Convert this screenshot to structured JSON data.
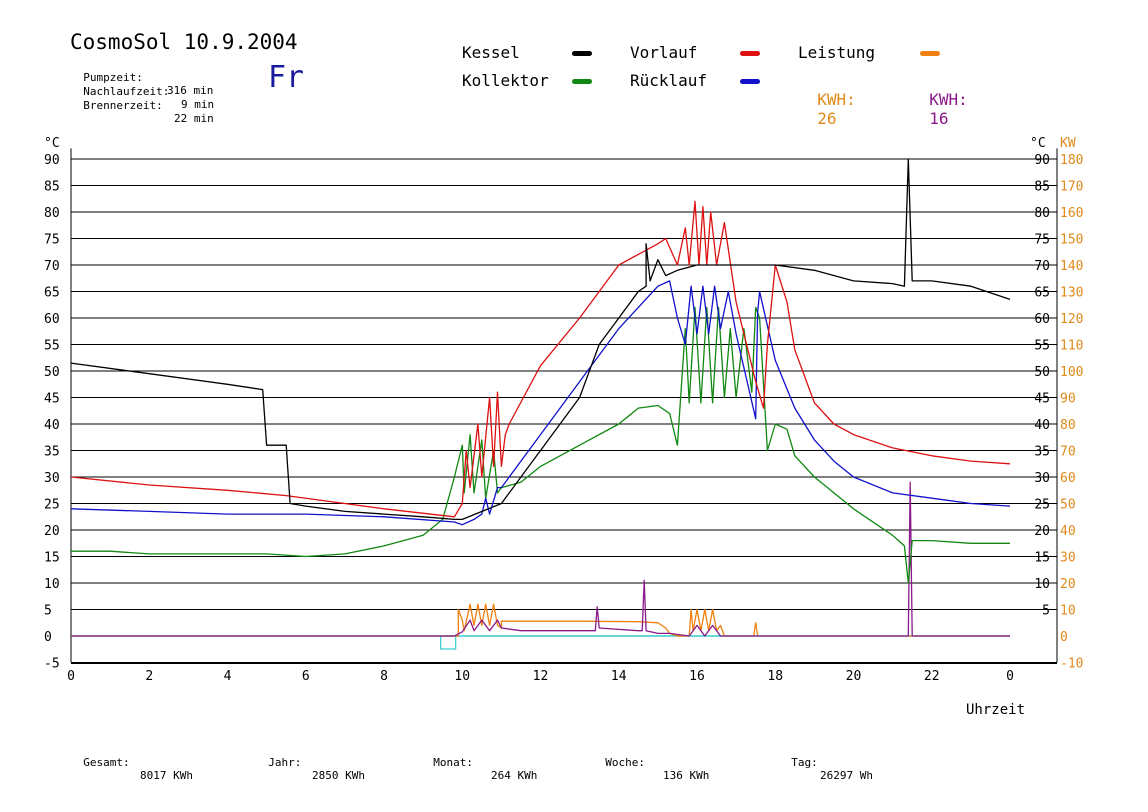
{
  "header": {
    "title": "CosmoSol 10.9.2004",
    "weekday": "Fr",
    "stats": [
      {
        "label": "Pumpzeit:",
        "value": "316 min"
      },
      {
        "label": "Nachlaufzeit:",
        "value": "9 min"
      },
      {
        "label": "Brennerzeit:",
        "value": "22 min"
      }
    ]
  },
  "legend": {
    "kessel": {
      "label": "Kessel",
      "color": "#000000"
    },
    "vorlauf": {
      "label": "Vorlauf",
      "color": "#dd1111"
    },
    "leistung": {
      "label": "Leistung",
      "color": "#f08010"
    },
    "kollektor": {
      "label": "Kollektor",
      "color": "#118811"
    },
    "ruecklauf": {
      "label": "Rücklauf",
      "color": "#1111cc"
    },
    "kwh1": {
      "label": "KWH:",
      "value": "26",
      "color": "#e08a1a"
    },
    "kwh2": {
      "label": "KWH:",
      "value": "16",
      "color": "#8a1a8a"
    }
  },
  "footer": [
    {
      "label": "Gesamt:",
      "value": "8017 KWh"
    },
    {
      "label": "Jahr:",
      "value": "2850 KWh"
    },
    {
      "label": "Monat:",
      "value": "264 KWh"
    },
    {
      "label": "Woche:",
      "value": "136 KWh"
    },
    {
      "label": "Tag:",
      "value": "26297 Wh"
    }
  ],
  "chart_data": {
    "type": "line",
    "xlabel": "Uhrzeit",
    "left_unit": "°C",
    "right_unit_c": "°C",
    "right_unit_kw": "KW",
    "x_ticks": [
      "0",
      "2",
      "4",
      "6",
      "8",
      "10",
      "12",
      "14",
      "16",
      "18",
      "20",
      "22",
      "0"
    ],
    "y_left_ticks": [
      "-5",
      "0",
      "5",
      "10",
      "15",
      "20",
      "25",
      "30",
      "35",
      "40",
      "45",
      "50",
      "55",
      "60",
      "65",
      "70",
      "75",
      "80",
      "85",
      "90"
    ],
    "y_right_c_ticks": [
      "5",
      "10",
      "15",
      "20",
      "25",
      "30",
      "35",
      "40",
      "45",
      "50",
      "55",
      "60",
      "65",
      "70",
      "75",
      "80",
      "85",
      "90"
    ],
    "y_right_kw_ticks": [
      "-10",
      "0",
      "10",
      "20",
      "30",
      "40",
      "50",
      "60",
      "70",
      "80",
      "90",
      "100",
      "110",
      "120",
      "130",
      "140",
      "150",
      "160",
      "170",
      "180"
    ],
    "xlim": [
      0,
      24
    ],
    "ylim": [
      -5,
      92
    ],
    "grid": true,
    "colors": {
      "kessel": "#000000",
      "vorlauf": "#dd1111",
      "ruecklauf": "#1111cc",
      "kollektor": "#118811",
      "leistung": "#f08010",
      "kwh2": "#8a1a8a",
      "baseline": "#33cccc",
      "right_axis": "#e08a1a"
    },
    "series": [
      {
        "key": "kessel",
        "name": "Kessel",
        "points": [
          [
            0,
            51.5
          ],
          [
            2,
            49.5
          ],
          [
            4,
            47.5
          ],
          [
            4.9,
            46.5
          ],
          [
            5,
            36
          ],
          [
            5.5,
            36
          ],
          [
            5.6,
            25
          ],
          [
            6,
            24.5
          ],
          [
            7,
            23.5
          ],
          [
            8,
            23
          ],
          [
            9,
            22.5
          ],
          [
            9.8,
            22
          ],
          [
            10,
            22
          ],
          [
            11,
            25
          ],
          [
            12,
            35
          ],
          [
            13,
            45
          ],
          [
            13.5,
            55
          ],
          [
            14,
            60
          ],
          [
            14.5,
            65
          ],
          [
            14.7,
            66
          ],
          [
            14.7,
            74
          ],
          [
            14.8,
            67
          ],
          [
            15,
            71
          ],
          [
            15.2,
            68
          ],
          [
            15.5,
            69
          ],
          [
            16,
            70
          ],
          [
            16.5,
            70
          ],
          [
            17,
            70
          ],
          [
            18,
            70
          ],
          [
            19,
            69
          ],
          [
            20,
            67
          ],
          [
            21,
            66.5
          ],
          [
            21.3,
            66
          ],
          [
            21.4,
            90
          ],
          [
            21.5,
            67
          ],
          [
            22,
            67
          ],
          [
            23,
            66
          ],
          [
            24,
            63.5
          ]
        ]
      },
      {
        "key": "vorlauf",
        "name": "Vorlauf",
        "points": [
          [
            0,
            30
          ],
          [
            2,
            28.5
          ],
          [
            4,
            27.5
          ],
          [
            5.5,
            26.5
          ],
          [
            6.5,
            25.5
          ],
          [
            8,
            24
          ],
          [
            9.8,
            22.5
          ],
          [
            10,
            25
          ],
          [
            10.1,
            35
          ],
          [
            10.2,
            28
          ],
          [
            10.4,
            40
          ],
          [
            10.5,
            30
          ],
          [
            10.7,
            45
          ],
          [
            10.8,
            32
          ],
          [
            10.9,
            46
          ],
          [
            11,
            32
          ],
          [
            11.1,
            38
          ],
          [
            11.2,
            40
          ],
          [
            12,
            51
          ],
          [
            13,
            60
          ],
          [
            14,
            70
          ],
          [
            15,
            74
          ],
          [
            15.2,
            75
          ],
          [
            15.5,
            70
          ],
          [
            15.7,
            77
          ],
          [
            15.8,
            70
          ],
          [
            15.95,
            82
          ],
          [
            16.05,
            70
          ],
          [
            16.15,
            81
          ],
          [
            16.25,
            70
          ],
          [
            16.35,
            80
          ],
          [
            16.5,
            70
          ],
          [
            16.7,
            78
          ],
          [
            17,
            63
          ],
          [
            17.5,
            48
          ],
          [
            17.7,
            43
          ],
          [
            17.8,
            55
          ],
          [
            18,
            70
          ],
          [
            18.3,
            63
          ],
          [
            18.5,
            54
          ],
          [
            19,
            44
          ],
          [
            19.5,
            40
          ],
          [
            20,
            38
          ],
          [
            21,
            35.5
          ],
          [
            22,
            34
          ],
          [
            23,
            33
          ],
          [
            24,
            32.5
          ]
        ]
      },
      {
        "key": "ruecklauf",
        "name": "Rücklauf",
        "points": [
          [
            0,
            24
          ],
          [
            2,
            23.5
          ],
          [
            4,
            23
          ],
          [
            6,
            23
          ],
          [
            8,
            22.5
          ],
          [
            9.8,
            21.5
          ],
          [
            10,
            21
          ],
          [
            10.3,
            22
          ],
          [
            10.5,
            23
          ],
          [
            10.6,
            26
          ],
          [
            10.7,
            23
          ],
          [
            10.9,
            28
          ],
          [
            11,
            28
          ],
          [
            12,
            38
          ],
          [
            13,
            48
          ],
          [
            14,
            58
          ],
          [
            14.5,
            62
          ],
          [
            15,
            66
          ],
          [
            15.3,
            67
          ],
          [
            15.5,
            60
          ],
          [
            15.7,
            55
          ],
          [
            15.85,
            66
          ],
          [
            16,
            57
          ],
          [
            16.15,
            66
          ],
          [
            16.3,
            57
          ],
          [
            16.45,
            66
          ],
          [
            16.6,
            58
          ],
          [
            16.8,
            65
          ],
          [
            17,
            57
          ],
          [
            17.5,
            41
          ],
          [
            17.55,
            61
          ],
          [
            17.6,
            65
          ],
          [
            18,
            52
          ],
          [
            18.5,
            43
          ],
          [
            19,
            37
          ],
          [
            19.5,
            33
          ],
          [
            20,
            30
          ],
          [
            21,
            27
          ],
          [
            22,
            26
          ],
          [
            23,
            25
          ],
          [
            24,
            24.5
          ]
        ]
      },
      {
        "key": "kollektor",
        "name": "Kollektor",
        "points": [
          [
            0,
            16
          ],
          [
            1,
            16
          ],
          [
            2,
            15.5
          ],
          [
            3,
            15.5
          ],
          [
            4,
            15.5
          ],
          [
            5,
            15.5
          ],
          [
            6,
            15
          ],
          [
            7,
            15.5
          ],
          [
            8,
            17
          ],
          [
            9,
            19
          ],
          [
            9.5,
            22
          ],
          [
            9.8,
            30
          ],
          [
            10,
            36
          ],
          [
            10.05,
            27
          ],
          [
            10.2,
            38
          ],
          [
            10.3,
            27
          ],
          [
            10.5,
            37
          ],
          [
            10.6,
            26
          ],
          [
            10.8,
            35
          ],
          [
            10.9,
            27
          ],
          [
            11,
            28
          ],
          [
            11.5,
            29
          ],
          [
            12,
            32
          ],
          [
            13,
            36
          ],
          [
            14,
            40
          ],
          [
            14.5,
            43
          ],
          [
            15,
            43.5
          ],
          [
            15.3,
            42
          ],
          [
            15.5,
            36
          ],
          [
            15.7,
            58
          ],
          [
            15.8,
            44
          ],
          [
            15.95,
            62
          ],
          [
            16.1,
            44
          ],
          [
            16.25,
            62
          ],
          [
            16.4,
            44
          ],
          [
            16.55,
            62
          ],
          [
            16.7,
            45
          ],
          [
            16.85,
            58
          ],
          [
            17,
            45
          ],
          [
            17.2,
            58
          ],
          [
            17.4,
            46
          ],
          [
            17.5,
            62
          ],
          [
            17.6,
            60
          ],
          [
            17.8,
            35
          ],
          [
            18,
            40
          ],
          [
            18.3,
            39
          ],
          [
            18.5,
            34
          ],
          [
            19,
            30
          ],
          [
            20,
            24
          ],
          [
            21,
            19
          ],
          [
            21.3,
            17
          ],
          [
            21.4,
            10
          ],
          [
            21.5,
            18
          ],
          [
            22,
            18
          ],
          [
            23,
            17.5
          ],
          [
            24,
            17.5
          ]
        ]
      },
      {
        "key": "leistung",
        "name": "Leistung",
        "points": [
          [
            0,
            0
          ],
          [
            9.8,
            0
          ],
          [
            9.9,
            0
          ],
          [
            9.9,
            5
          ],
          [
            10,
            3
          ],
          [
            10.05,
            1
          ],
          [
            10.2,
            6
          ],
          [
            10.3,
            2
          ],
          [
            10.4,
            6
          ],
          [
            10.5,
            2
          ],
          [
            10.6,
            6
          ],
          [
            10.7,
            2
          ],
          [
            10.8,
            6
          ],
          [
            10.9,
            2
          ],
          [
            11,
            1.5
          ],
          [
            11,
            2.8
          ],
          [
            13,
            2.8
          ],
          [
            14.5,
            2.7
          ],
          [
            15,
            2.5
          ],
          [
            15.2,
            1.5
          ],
          [
            15.3,
            0.5
          ],
          [
            15.5,
            0
          ],
          [
            15.8,
            0
          ],
          [
            15.85,
            5
          ],
          [
            15.9,
            1
          ],
          [
            16,
            5
          ],
          [
            16.1,
            1
          ],
          [
            16.2,
            5
          ],
          [
            16.3,
            1
          ],
          [
            16.4,
            5
          ],
          [
            16.5,
            1
          ],
          [
            16.6,
            2
          ],
          [
            16.7,
            0
          ],
          [
            17.45,
            0
          ],
          [
            17.5,
            2.5
          ],
          [
            17.55,
            0
          ],
          [
            24,
            0
          ]
        ]
      },
      {
        "key": "kwh2",
        "name": "",
        "points": [
          [
            0,
            0
          ],
          [
            9.8,
            0
          ],
          [
            10,
            0.8
          ],
          [
            10.2,
            3
          ],
          [
            10.3,
            1
          ],
          [
            10.5,
            3
          ],
          [
            10.7,
            1
          ],
          [
            10.9,
            3
          ],
          [
            11,
            1.5
          ],
          [
            11.5,
            1
          ],
          [
            13,
            1
          ],
          [
            13.4,
            1
          ],
          [
            13.45,
            5.5
          ],
          [
            13.5,
            1.5
          ],
          [
            14.5,
            1
          ],
          [
            14.6,
            1
          ],
          [
            14.65,
            10.5
          ],
          [
            14.7,
            1
          ],
          [
            15,
            0.5
          ],
          [
            15.3,
            0.5
          ],
          [
            15.8,
            0
          ],
          [
            16,
            2
          ],
          [
            16.2,
            0
          ],
          [
            16.4,
            2
          ],
          [
            16.6,
            0
          ],
          [
            21.4,
            0
          ],
          [
            21.45,
            29
          ],
          [
            21.5,
            0
          ],
          [
            24,
            0
          ]
        ]
      }
    ]
  }
}
